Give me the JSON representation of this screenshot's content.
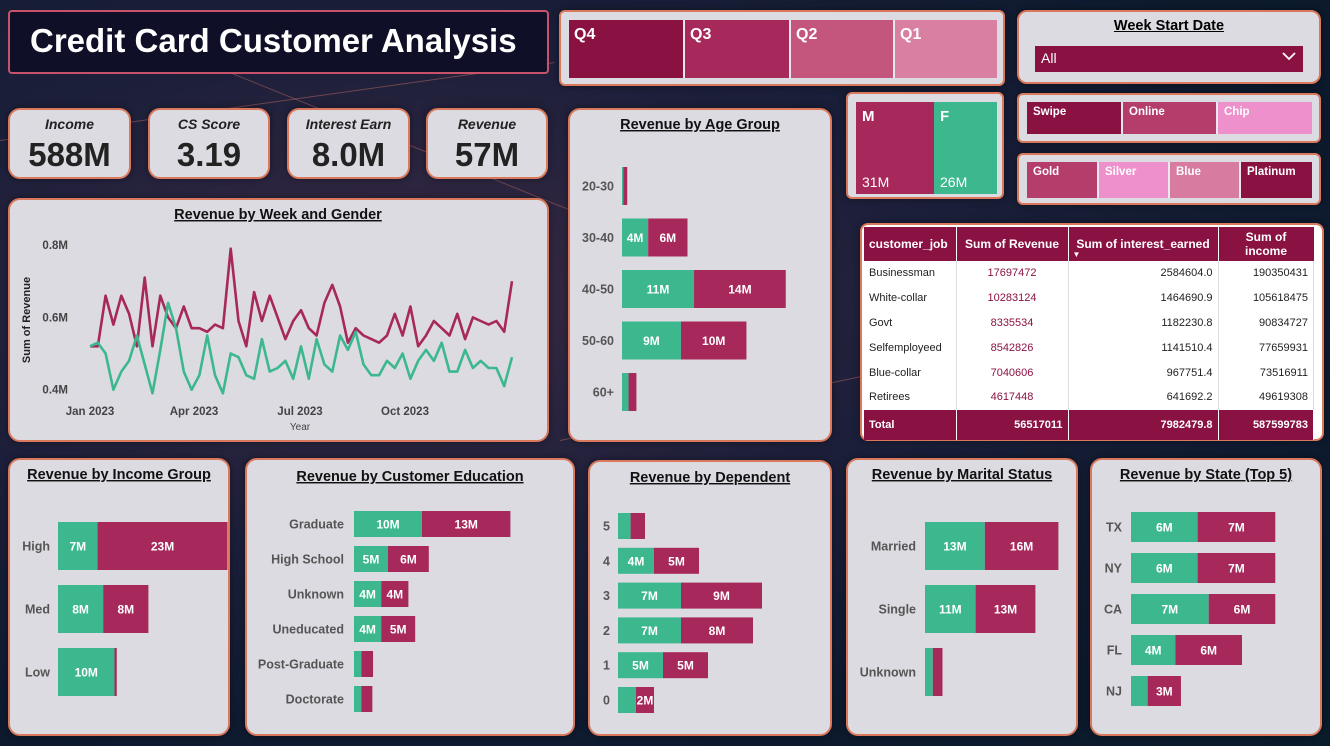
{
  "title": "Credit Card Customer Analysis",
  "colors": {
    "female": "#3db88e",
    "male": "#a7285a",
    "primary": "#8a1243"
  },
  "kpis": [
    {
      "label": "Income",
      "value": "588M"
    },
    {
      "label": "CS Score",
      "value": "3.19"
    },
    {
      "label": "Interest Earn",
      "value": "8.0M"
    },
    {
      "label": "Revenue",
      "value": "57M"
    }
  ],
  "quarters": [
    "Q4",
    "Q3",
    "Q2",
    "Q1"
  ],
  "week_slicer": {
    "title": "Week Start Date",
    "value": "All"
  },
  "gender_tiles": [
    {
      "label": "M",
      "value": "31M"
    },
    {
      "label": "F",
      "value": "26M"
    }
  ],
  "card_types": [
    "Swipe",
    "Online",
    "Chip"
  ],
  "card_categories": [
    "Gold",
    "Silver",
    "Blue",
    "Platinum"
  ],
  "table": {
    "columns": [
      "customer_job",
      "Sum of Revenue",
      "Sum of interest_earned",
      "Sum of income"
    ],
    "rows": [
      [
        "Businessman",
        "17697472",
        "2584604.0",
        "190350431"
      ],
      [
        "White-collar",
        "10283124",
        "1464690.9",
        "105618475"
      ],
      [
        "Govt",
        "8335534",
        "1182230.8",
        "90834727"
      ],
      [
        "Selfemployeed",
        "8542826",
        "1141510.4",
        "77659931"
      ],
      [
        "Blue-collar",
        "7040606",
        "967751.4",
        "73516911"
      ],
      [
        "Retirees",
        "4617448",
        "641692.2",
        "49619308"
      ]
    ],
    "total": [
      "Total",
      "56517011",
      "7982479.8",
      "587599783"
    ]
  },
  "chart_data": [
    {
      "type": "line",
      "title": "Revenue by Week and Gender",
      "xlabel": "Year",
      "ylabel": "Sum of Revenue",
      "x_tick_labels": [
        "Jan 2023",
        "Apr 2023",
        "Jul 2023",
        "Oct 2023"
      ],
      "y_tick_labels": [
        "0.8M",
        "0.6M",
        "0.4M"
      ],
      "ylim": [
        0.33,
        0.85
      ],
      "series": [
        {
          "color": "#a7285a",
          "values": [
            0.52,
            0.52,
            0.66,
            0.58,
            0.66,
            0.61,
            0.52,
            0.71,
            0.52,
            0.66,
            0.6,
            0.57,
            0.63,
            0.57,
            0.57,
            0.56,
            0.58,
            0.57,
            0.79,
            0.59,
            0.52,
            0.67,
            0.59,
            0.66,
            0.6,
            0.54,
            0.59,
            0.62,
            0.57,
            0.55,
            0.64,
            0.69,
            0.63,
            0.53,
            0.57,
            0.55,
            0.54,
            0.53,
            0.55,
            0.61,
            0.55,
            0.63,
            0.52,
            0.55,
            0.59,
            0.57,
            0.55,
            0.61,
            0.54,
            0.6,
            0.59,
            0.58,
            0.59,
            0.56,
            0.7
          ]
        },
        {
          "color": "#3db88e",
          "values": [
            0.52,
            0.53,
            0.5,
            0.4,
            0.45,
            0.48,
            0.55,
            0.47,
            0.39,
            0.51,
            0.64,
            0.57,
            0.45,
            0.4,
            0.44,
            0.55,
            0.44,
            0.39,
            0.5,
            0.49,
            0.44,
            0.43,
            0.54,
            0.45,
            0.46,
            0.48,
            0.43,
            0.52,
            0.43,
            0.54,
            0.47,
            0.45,
            0.55,
            0.51,
            0.56,
            0.47,
            0.44,
            0.44,
            0.48,
            0.46,
            0.5,
            0.43,
            0.48,
            0.51,
            0.48,
            0.53,
            0.45,
            0.45,
            0.51,
            0.46,
            0.48,
            0.46,
            0.46,
            0.41,
            0.49
          ]
        }
      ]
    },
    {
      "type": "bar",
      "title": "Revenue by Age Group",
      "categories": [
        "20-30",
        "30-40",
        "40-50",
        "50-60",
        "60+"
      ],
      "series": [
        {
          "values": [
            0.2,
            4,
            11,
            9,
            1.0
          ],
          "labels": [
            "",
            "4M",
            "11M",
            "9M",
            ""
          ]
        },
        {
          "values": [
            0.6,
            6,
            14,
            10,
            1.2
          ],
          "labels": [
            "",
            "6M",
            "14M",
            "10M",
            ""
          ]
        }
      ]
    },
    {
      "type": "bar",
      "title": "Revenue by Income Group",
      "categories": [
        "High",
        "Med",
        "Low"
      ],
      "series": [
        {
          "values": [
            7,
            8,
            10
          ],
          "labels": [
            "7M",
            "8M",
            "10M"
          ]
        },
        {
          "values": [
            23,
            8,
            0.4
          ],
          "labels": [
            "23M",
            "8M",
            ""
          ]
        }
      ]
    },
    {
      "type": "bar",
      "title": "Revenue by Customer Education",
      "categories": [
        "Graduate",
        "High School",
        "Unknown",
        "Uneducated",
        "Post-Graduate",
        "Doctorate"
      ],
      "series": [
        {
          "values": [
            10,
            5,
            4,
            4,
            1.1,
            1.1
          ],
          "labels": [
            "10M",
            "5M",
            "4M",
            "4M",
            "",
            ""
          ]
        },
        {
          "values": [
            13,
            6,
            4,
            5,
            1.7,
            1.6
          ],
          "labels": [
            "13M",
            "6M",
            "4M",
            "5M",
            "",
            ""
          ]
        }
      ]
    },
    {
      "type": "bar",
      "title": "Revenue by Dependent",
      "categories": [
        "5",
        "4",
        "3",
        "2",
        "1",
        "0"
      ],
      "series": [
        {
          "values": [
            1.4,
            4,
            7,
            7,
            5,
            2
          ],
          "labels": [
            "",
            "4M",
            "7M",
            "7M",
            "5M",
            ""
          ]
        },
        {
          "values": [
            1.6,
            5,
            9,
            8,
            5,
            2
          ],
          "labels": [
            "",
            "5M",
            "9M",
            "8M",
            "5M",
            "2M"
          ]
        }
      ]
    },
    {
      "type": "bar",
      "title": "Revenue by Marital Status",
      "categories": [
        "Married",
        "Single",
        "Unknown"
      ],
      "series": [
        {
          "values": [
            13,
            11,
            1.7
          ],
          "labels": [
            "13M",
            "11M",
            ""
          ]
        },
        {
          "values": [
            16,
            13,
            2.1
          ],
          "labels": [
            "16M",
            "13M",
            ""
          ]
        }
      ]
    },
    {
      "type": "bar",
      "title": "Revenue by State (Top 5)",
      "categories": [
        "TX",
        "NY",
        "CA",
        "FL",
        "NJ"
      ],
      "series": [
        {
          "values": [
            6,
            6,
            7,
            4,
            1.5
          ],
          "labels": [
            "6M",
            "6M",
            "7M",
            "4M",
            ""
          ]
        },
        {
          "values": [
            7,
            7,
            6,
            6,
            3
          ],
          "labels": [
            "7M",
            "7M",
            "6M",
            "6M",
            "3M"
          ]
        }
      ]
    }
  ]
}
